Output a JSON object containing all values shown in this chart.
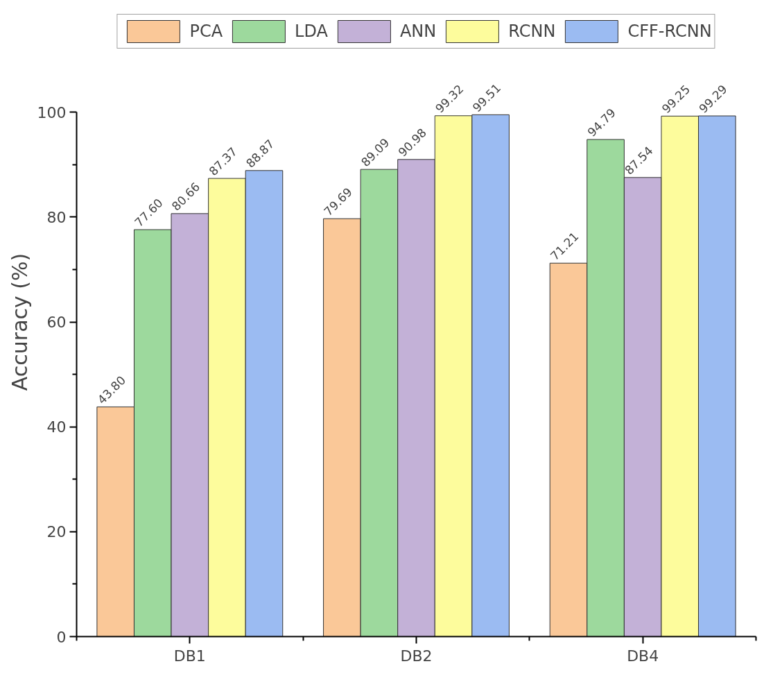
{
  "chart_data": {
    "type": "bar",
    "ylabel": "Accuracy (%)",
    "categories": [
      "DB1",
      "DB2",
      "DB4"
    ],
    "ylim": [
      0,
      100
    ],
    "yticks": [
      0,
      20,
      40,
      60,
      80,
      100
    ],
    "grid": false,
    "legend": "top",
    "series": [
      {
        "name": "PCA",
        "color": "#fac898",
        "values": [
          43.8,
          79.69,
          71.21
        ],
        "value_labels": [
          "43.80",
          "79.69",
          "71.21"
        ]
      },
      {
        "name": "LDA",
        "color": "#9dd99d",
        "values": [
          77.6,
          89.09,
          94.79
        ],
        "value_labels": [
          "77.60",
          "89.09",
          "94.79"
        ]
      },
      {
        "name": "ANN",
        "color": "#c3b1d7",
        "values": [
          80.66,
          90.98,
          87.54
        ],
        "value_labels": [
          "80.66",
          "90.98",
          "87.54"
        ]
      },
      {
        "name": "RCNN",
        "color": "#fdfc9c",
        "values": [
          87.37,
          99.32,
          99.25
        ],
        "value_labels": [
          "87.37",
          "99.32",
          "99.25"
        ]
      },
      {
        "name": "CFF-RCNN",
        "color": "#9bbbf2",
        "values": [
          88.87,
          99.51,
          99.29
        ],
        "value_labels": [
          "88.87",
          "99.51",
          "99.29"
        ]
      }
    ]
  }
}
